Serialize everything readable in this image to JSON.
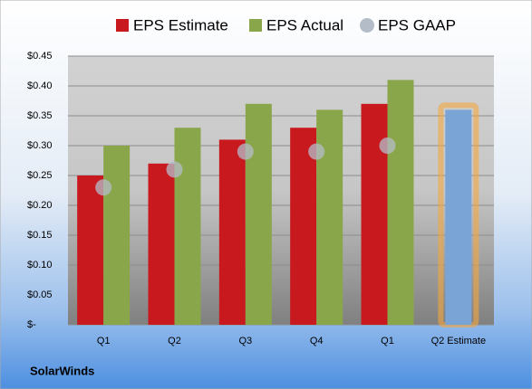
{
  "chart_data": {
    "type": "bar",
    "source": "SolarWinds",
    "categories": [
      "Q1",
      "Q2",
      "Q3",
      "Q4",
      "Q1",
      "Q2 Estimate"
    ],
    "series": [
      {
        "name": "EPS Estimate",
        "color": "#c8191e",
        "values": [
          0.25,
          0.27,
          0.31,
          0.33,
          0.37,
          0.36
        ]
      },
      {
        "name": "EPS Actual",
        "color": "#8aa64a",
        "values": [
          0.3,
          0.33,
          0.37,
          0.36,
          0.41,
          null
        ]
      },
      {
        "name": "EPS GAAP",
        "color": "#b4bcc8",
        "type": "scatter",
        "values": [
          0.23,
          0.26,
          0.29,
          0.29,
          0.3,
          null
        ]
      }
    ],
    "estimate_highlight_color": "#7aa3d6",
    "ylim": [
      0,
      0.45
    ],
    "yticks": [
      {
        "value": 0,
        "label": "$-"
      },
      {
        "value": 0.05,
        "label": "$0.05"
      },
      {
        "value": 0.1,
        "label": "$0.10"
      },
      {
        "value": 0.15,
        "label": "$0.15"
      },
      {
        "value": 0.2,
        "label": "$0.20"
      },
      {
        "value": 0.25,
        "label": "$0.25"
      },
      {
        "value": 0.3,
        "label": "$0.30"
      },
      {
        "value": 0.35,
        "label": "$0.35"
      },
      {
        "value": 0.4,
        "label": "$0.40"
      },
      {
        "value": 0.45,
        "label": "$0.45"
      }
    ],
    "grid": true
  }
}
